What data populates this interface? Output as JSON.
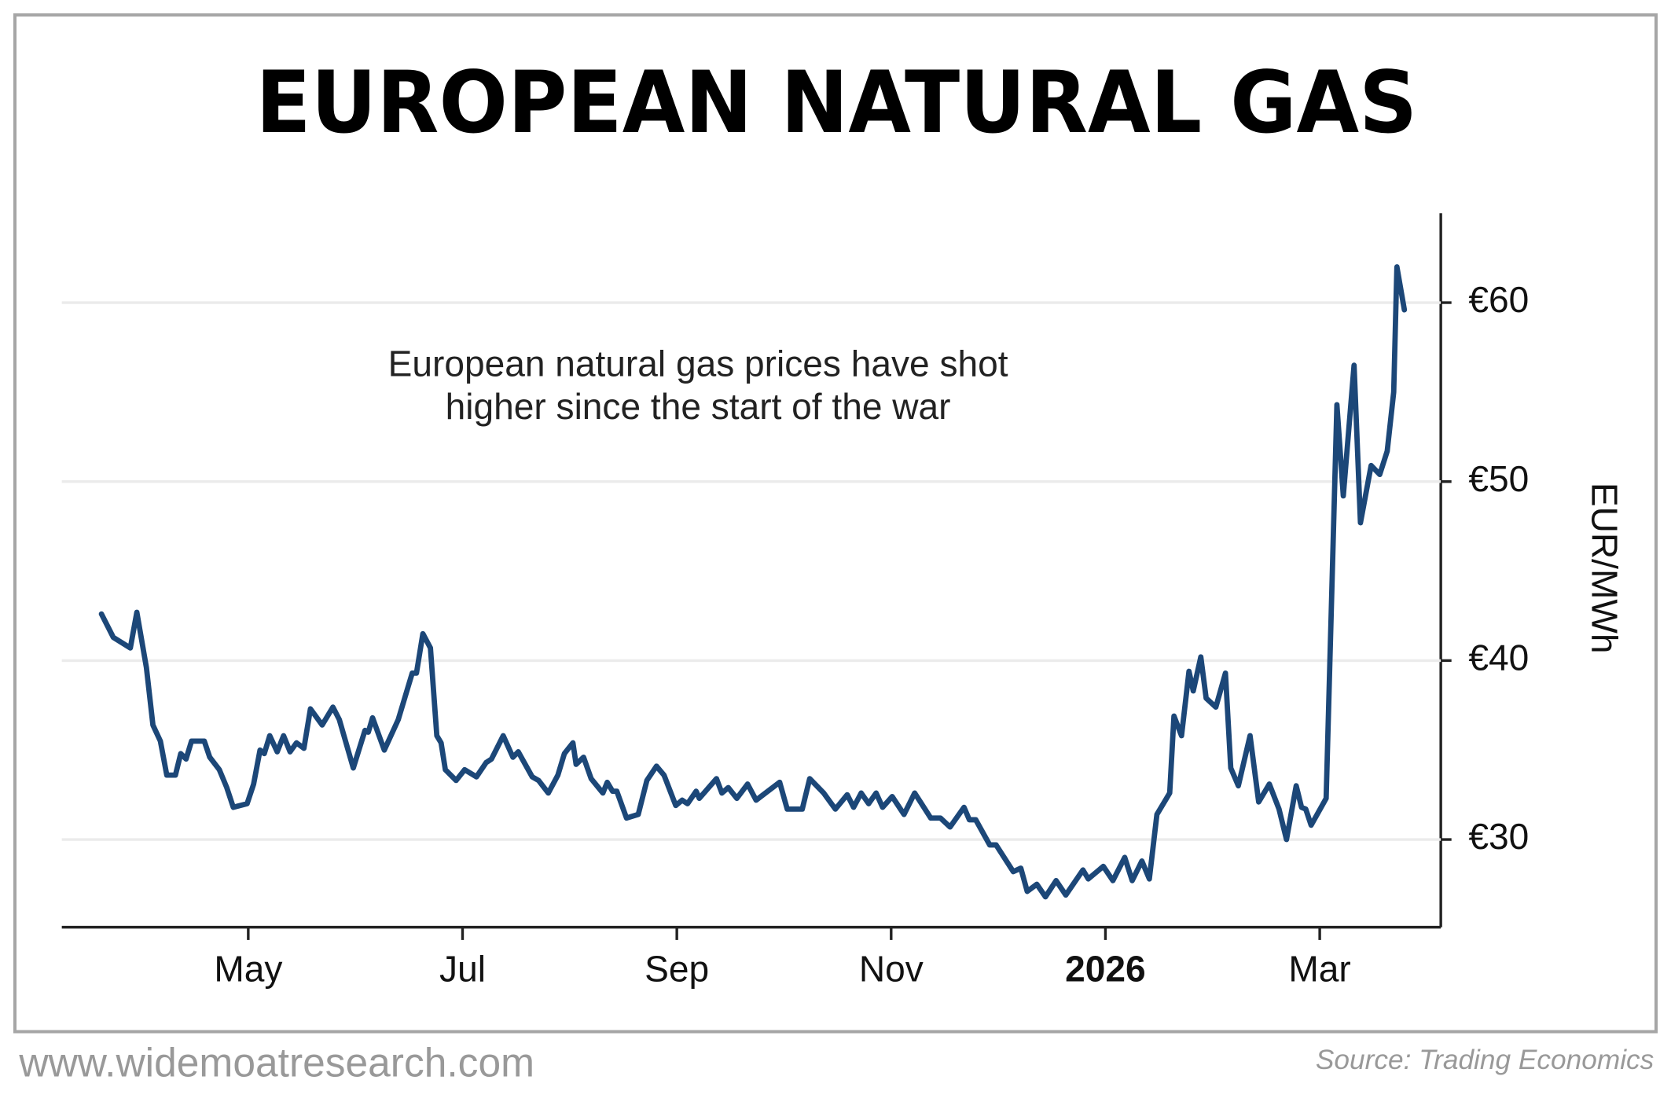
{
  "chart_data": {
    "type": "line",
    "title": "EUROPEAN NATURAL GAS",
    "annotation": [
      "European natural gas prices have shot",
      "higher since the start of the war"
    ],
    "ylabel": "EUR/MWh",
    "website": "www.widemoatresearch.com",
    "source": "Source: Trading Economics",
    "color": "#1c4778",
    "grid": true,
    "xlim": [
      3.26,
      16.13
    ],
    "xticks": [
      {
        "value": 5,
        "label": "May"
      },
      {
        "value": 7,
        "label": "Jul"
      },
      {
        "value": 9,
        "label": "Sep"
      },
      {
        "value": 11,
        "label": "Nov"
      },
      {
        "value": 13,
        "label": "2026",
        "bold": true
      },
      {
        "value": 15,
        "label": "Mar"
      }
    ],
    "ylim": [
      25.1,
      65
    ],
    "yticks": [
      {
        "value": 30,
        "label": "€30"
      },
      {
        "value": 40,
        "label": "€40"
      },
      {
        "value": 50,
        "label": "€50"
      },
      {
        "value": 60,
        "label": "€60"
      }
    ],
    "x": [
      3.63,
      3.74,
      3.9,
      3.96,
      4.05,
      4.11,
      4.18,
      4.24,
      4.32,
      4.37,
      4.42,
      4.47,
      4.59,
      4.64,
      4.73,
      4.8,
      4.86,
      4.99,
      5.05,
      5.11,
      5.15,
      5.2,
      5.27,
      5.33,
      5.39,
      5.45,
      5.52,
      5.58,
      5.69,
      5.79,
      5.85,
      5.98,
      6.09,
      6.12,
      6.16,
      6.27,
      6.4,
      6.53,
      6.57,
      6.63,
      6.7,
      6.76,
      6.8,
      6.84,
      6.94,
      7.02,
      7.13,
      7.22,
      7.27,
      7.38,
      7.47,
      7.52,
      7.65,
      7.71,
      7.8,
      7.89,
      7.95,
      8.03,
      8.06,
      8.13,
      8.2,
      8.31,
      8.35,
      8.4,
      8.44,
      8.53,
      8.64,
      8.72,
      8.81,
      8.88,
      8.99,
      9.05,
      9.1,
      9.18,
      9.21,
      9.37,
      9.42,
      9.48,
      9.56,
      9.66,
      9.74,
      9.96,
      10.03,
      10.17,
      10.24,
      10.37,
      10.48,
      10.59,
      10.65,
      10.72,
      10.79,
      10.86,
      10.92,
      11.01,
      11.12,
      11.22,
      11.37,
      11.46,
      11.55,
      11.68,
      11.73,
      11.79,
      11.92,
      11.98,
      12.14,
      12.21,
      12.27,
      12.36,
      12.44,
      12.54,
      12.63,
      12.79,
      12.84,
      12.98,
      13.07,
      13.18,
      13.25,
      13.34,
      13.41,
      13.48,
      13.6,
      13.64,
      13.71,
      13.78,
      13.82,
      13.89,
      13.94,
      14.03,
      14.12,
      14.17,
      14.24,
      14.35,
      14.43,
      14.53,
      14.62,
      14.69,
      14.78,
      14.83,
      14.87,
      14.92,
      15.06,
      15.16,
      15.22,
      15.32,
      15.38,
      15.48,
      15.56,
      15.63,
      15.69,
      15.72,
      15.79
    ],
    "values": [
      42.6,
      41.3,
      40.7,
      42.7,
      39.6,
      36.4,
      35.5,
      33.6,
      33.6,
      34.8,
      34.5,
      35.5,
      35.5,
      34.6,
      33.9,
      32.9,
      31.8,
      32.0,
      33.1,
      35.0,
      34.8,
      35.8,
      34.9,
      35.8,
      34.9,
      35.4,
      35.1,
      37.3,
      36.4,
      37.4,
      36.7,
      34.0,
      36.1,
      36.0,
      36.8,
      35.0,
      36.7,
      39.3,
      39.3,
      41.5,
      40.7,
      35.8,
      35.4,
      33.9,
      33.3,
      33.9,
      33.5,
      34.3,
      34.5,
      35.8,
      34.6,
      34.9,
      33.5,
      33.3,
      32.6,
      33.6,
      34.8,
      35.4,
      34.2,
      34.6,
      33.4,
      32.6,
      33.2,
      32.7,
      32.7,
      31.2,
      31.4,
      33.3,
      34.1,
      33.6,
      31.9,
      32.2,
      32.0,
      32.7,
      32.3,
      33.4,
      32.6,
      32.9,
      32.3,
      33.1,
      32.2,
      33.2,
      31.7,
      31.7,
      33.4,
      32.6,
      31.7,
      32.5,
      31.8,
      32.6,
      32.0,
      32.6,
      31.8,
      32.4,
      31.4,
      32.6,
      31.2,
      31.2,
      30.7,
      31.8,
      31.1,
      31.1,
      29.7,
      29.7,
      28.2,
      28.4,
      27.1,
      27.5,
      26.8,
      27.7,
      26.9,
      28.3,
      27.8,
      28.5,
      27.7,
      29.0,
      27.7,
      28.8,
      27.8,
      31.4,
      32.6,
      36.9,
      35.8,
      39.4,
      38.3,
      40.2,
      37.9,
      37.4,
      39.3,
      34.0,
      33.0,
      35.8,
      32.1,
      33.1,
      31.7,
      30.0,
      33.0,
      31.8,
      31.7,
      30.8,
      32.3,
      54.3,
      49.2,
      56.5,
      47.7,
      50.9,
      50.4,
      51.7,
      55.0,
      62.0,
      59.6
    ]
  }
}
